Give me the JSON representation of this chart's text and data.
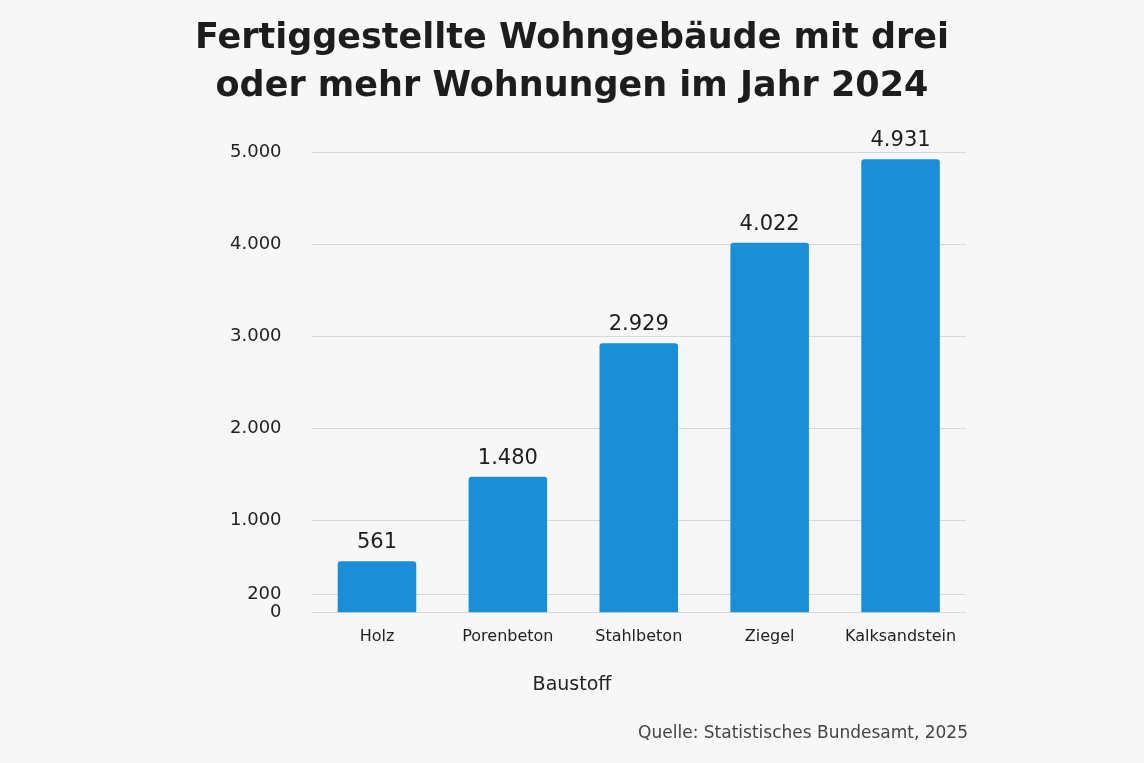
{
  "chart_data": {
    "type": "bar",
    "title": "Fertiggestellte Wohngebäude mit drei oder mehr Wohnungen im Jahr 2024",
    "xlabel": "Baustoff",
    "categories": [
      "Holz",
      "Porenbeton",
      "Stahlbeton",
      "Ziegel",
      "Kalksandstein"
    ],
    "values": [
      561,
      1480,
      2929,
      4022,
      4931
    ],
    "value_labels": [
      "561",
      "1.480",
      "2.929",
      "4.022",
      "4.931"
    ],
    "color": "#1a8fd8",
    "ylim": [
      0,
      5000
    ],
    "yticks": [
      0,
      200,
      {
        "value": 1000,
        "label": "1.000"
      },
      {
        "value": 2000,
        "label": "2.000"
      },
      {
        "value": 3000,
        "label": "3.000"
      },
      {
        "value": 4000,
        "label": "4.000"
      },
      {
        "value": 5000,
        "label": "5.000"
      }
    ],
    "grid": "y",
    "legend": false,
    "annotations": [
      "Quelle: Statistisches Bundesamt, 2025"
    ]
  }
}
